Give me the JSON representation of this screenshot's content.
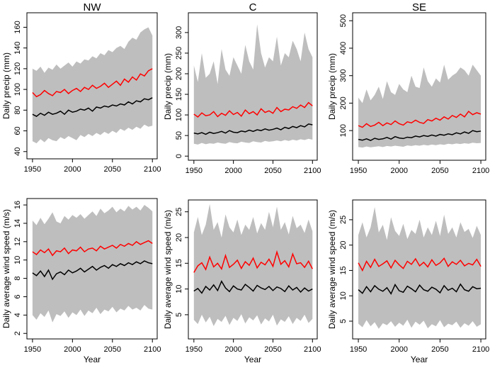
{
  "chart_data": [
    {
      "type": "line",
      "title": "NW",
      "y_label": "Daily precip (mm)",
      "x": [
        1950,
        1955,
        1960,
        1965,
        1970,
        1975,
        1980,
        1985,
        1990,
        1995,
        2000,
        2005,
        2010,
        2015,
        2020,
        2025,
        2030,
        2035,
        2040,
        2045,
        2050,
        2055,
        2060,
        2065,
        2070,
        2075,
        2080,
        2085,
        2090,
        2095,
        2100
      ],
      "xlim": [
        1943,
        2106
      ],
      "xticks": [
        1950,
        2000,
        2050,
        2100
      ],
      "ylim": [
        33,
        174
      ],
      "yticks": [
        40,
        60,
        80,
        100,
        120,
        140,
        160
      ],
      "band": {
        "color": "#bebebe",
        "lower": [
          50,
          48,
          52,
          49,
          53,
          51,
          50,
          54,
          52,
          55,
          53,
          51,
          56,
          54,
          57,
          55,
          58,
          56,
          59,
          57,
          60,
          58,
          62,
          60,
          63,
          61,
          64,
          62,
          66,
          64,
          65
        ],
        "upper": [
          120,
          118,
          122,
          116,
          121,
          119,
          124,
          120,
          123,
          126,
          122,
          127,
          125,
          129,
          128,
          132,
          130,
          135,
          133,
          138,
          136,
          140,
          142,
          139,
          146,
          150,
          148,
          155,
          158,
          160,
          152
        ]
      },
      "series": [
        {
          "color": "#ff0000",
          "values": [
            97,
            93,
            95,
            99,
            96,
            94,
            98,
            97,
            100,
            96,
            99,
            101,
            98,
            102,
            100,
            104,
            101,
            103,
            106,
            102,
            105,
            108,
            104,
            110,
            107,
            112,
            109,
            115,
            113,
            118,
            120
          ]
        },
        {
          "color": "#000000",
          "values": [
            76,
            74,
            77,
            75,
            78,
            76,
            77,
            79,
            76,
            80,
            78,
            79,
            81,
            80,
            82,
            79,
            83,
            82,
            84,
            83,
            85,
            84,
            86,
            85,
            88,
            86,
            89,
            88,
            91,
            90,
            92
          ]
        }
      ]
    },
    {
      "type": "line",
      "title": "C",
      "y_label": "Daily precip (mm)",
      "x": [
        1950,
        1955,
        1960,
        1965,
        1970,
        1975,
        1980,
        1985,
        1990,
        1995,
        2000,
        2005,
        2010,
        2015,
        2020,
        2025,
        2030,
        2035,
        2040,
        2045,
        2050,
        2055,
        2060,
        2065,
        2070,
        2075,
        2080,
        2085,
        2090,
        2095,
        2100
      ],
      "xlim": [
        1943,
        2106
      ],
      "xticks": [
        1950,
        2000,
        2050,
        2100
      ],
      "ylim": [
        -10,
        348
      ],
      "yticks": [
        0,
        50,
        100,
        150,
        200,
        250,
        300
      ],
      "band": {
        "color": "#bebebe",
        "lower": [
          30,
          28,
          32,
          29,
          31,
          30,
          33,
          31,
          30,
          34,
          32,
          31,
          35,
          33,
          32,
          36,
          34,
          33,
          37,
          35,
          36,
          38,
          36,
          39,
          37,
          40,
          38,
          41,
          39,
          42,
          40
        ],
        "upper": [
          220,
          180,
          250,
          190,
          200,
          230,
          175,
          260,
          210,
          195,
          240,
          220,
          200,
          270,
          230,
          210,
          320,
          250,
          215,
          240,
          230,
          290,
          220,
          250,
          240,
          280,
          260,
          230,
          300,
          260,
          240
        ]
      },
      "series": [
        {
          "color": "#ff0000",
          "values": [
            102,
            95,
            105,
            98,
            100,
            108,
            96,
            104,
            99,
            110,
            101,
            106,
            97,
            112,
            103,
            108,
            100,
            115,
            106,
            110,
            104,
            118,
            108,
            114,
            112,
            120,
            116,
            124,
            118,
            130,
            122
          ]
        },
        {
          "color": "#000000",
          "values": [
            56,
            54,
            57,
            53,
            58,
            55,
            57,
            60,
            56,
            62,
            58,
            57,
            61,
            59,
            63,
            60,
            64,
            62,
            66,
            63,
            65,
            68,
            64,
            70,
            67,
            72,
            69,
            74,
            71,
            78,
            76
          ]
        }
      ]
    },
    {
      "type": "line",
      "title": "SE",
      "y_label": "Daily precip (mm)",
      "x": [
        1950,
        1955,
        1960,
        1965,
        1970,
        1975,
        1980,
        1985,
        1990,
        1995,
        2000,
        2005,
        2010,
        2015,
        2020,
        2025,
        2030,
        2035,
        2040,
        2045,
        2050,
        2055,
        2060,
        2065,
        2070,
        2075,
        2080,
        2085,
        2090,
        2095,
        2100
      ],
      "xlim": [
        1943,
        2106
      ],
      "xticks": [
        1950,
        2000,
        2050,
        2100
      ],
      "ylim": [
        -8,
        529
      ],
      "yticks": [
        100,
        200,
        300,
        400,
        500
      ],
      "band": {
        "color": "#bebebe",
        "lower": [
          40,
          38,
          42,
          39,
          41,
          43,
          40,
          44,
          42,
          45,
          43,
          41,
          46,
          44,
          47,
          45,
          48,
          46,
          49,
          47,
          50,
          48,
          52,
          50,
          53,
          51,
          54,
          52,
          56,
          54,
          55
        ],
        "upper": [
          220,
          200,
          250,
          210,
          230,
          260,
          215,
          280,
          240,
          230,
          270,
          250,
          240,
          300,
          260,
          255,
          330,
          280,
          260,
          290,
          275,
          340,
          285,
          300,
          310,
          330,
          320,
          300,
          340,
          320,
          300
        ]
      },
      "series": [
        {
          "color": "#ff0000",
          "values": [
            118,
            112,
            125,
            115,
            120,
            130,
            118,
            128,
            122,
            135,
            125,
            120,
            132,
            128,
            138,
            130,
            126,
            140,
            135,
            145,
            138,
            150,
            142,
            155,
            148,
            160,
            150,
            170,
            158,
            165,
            160
          ]
        },
        {
          "color": "#000000",
          "values": [
            68,
            65,
            70,
            64,
            72,
            68,
            70,
            75,
            69,
            78,
            73,
            71,
            76,
            74,
            80,
            77,
            82,
            79,
            84,
            80,
            86,
            83,
            88,
            85,
            92,
            88,
            95,
            90,
            100,
            96,
            98
          ]
        }
      ]
    },
    {
      "type": "line",
      "y_label": "Daily average wind speed (m/s)",
      "x_label": "Year",
      "x": [
        1950,
        1955,
        1960,
        1965,
        1970,
        1975,
        1980,
        1985,
        1990,
        1995,
        2000,
        2005,
        2010,
        2015,
        2020,
        2025,
        2030,
        2035,
        2040,
        2045,
        2050,
        2055,
        2060,
        2065,
        2070,
        2075,
        2080,
        2085,
        2090,
        2095,
        2100
      ],
      "xlim": [
        1943,
        2106
      ],
      "xticks": [
        1950,
        2000,
        2050,
        2100
      ],
      "ylim": [
        1.4,
        16.7
      ],
      "yticks": [
        2,
        4,
        6,
        8,
        10,
        12,
        14,
        16
      ],
      "band": {
        "color": "#bebebe",
        "lower": [
          4.0,
          3.5,
          4.2,
          3.8,
          4.5,
          3.2,
          4.1,
          3.9,
          4.4,
          3.7,
          4.3,
          4.0,
          4.6,
          3.9,
          4.5,
          4.2,
          4.8,
          4.1,
          4.6,
          4.4,
          4.9,
          4.3,
          4.7,
          4.5,
          5.0,
          4.6,
          4.8,
          4.5,
          5.1,
          4.7,
          4.6
        ],
        "upper": [
          14.3,
          13.8,
          14.6,
          13.9,
          14.5,
          15.2,
          14.2,
          14.0,
          14.8,
          14.4,
          14.9,
          14.6,
          15.0,
          14.5,
          14.9,
          15.3,
          14.8,
          15.6,
          15.1,
          15.4,
          15.8,
          15.2,
          15.6,
          15.3,
          15.9,
          15.5,
          15.8,
          15.4,
          16.0,
          15.7,
          15.3
        ]
      },
      "series": [
        {
          "color": "#ff0000",
          "values": [
            10.9,
            10.6,
            11.1,
            10.8,
            11.2,
            10.5,
            11.0,
            10.9,
            11.3,
            10.7,
            11.1,
            11.0,
            11.4,
            10.9,
            11.2,
            11.3,
            11.0,
            11.5,
            11.2,
            11.4,
            11.6,
            11.3,
            11.7,
            11.5,
            11.8,
            11.6,
            12.0,
            11.7,
            11.9,
            12.1,
            11.8
          ]
        },
        {
          "color": "#000000",
          "values": [
            8.6,
            8.3,
            8.8,
            8.2,
            8.9,
            7.9,
            8.5,
            8.7,
            8.4,
            8.9,
            8.6,
            8.8,
            9.1,
            8.7,
            9.0,
            9.3,
            8.9,
            9.2,
            9.4,
            9.1,
            9.5,
            9.3,
            9.6,
            9.4,
            9.7,
            9.5,
            9.8,
            9.6,
            9.9,
            9.7,
            9.6
          ]
        }
      ]
    },
    {
      "type": "line",
      "y_label": "Daily average wind speed (m/s)",
      "x_label": "Year",
      "x": [
        1950,
        1955,
        1960,
        1965,
        1970,
        1975,
        1980,
        1985,
        1990,
        1995,
        2000,
        2005,
        2010,
        2015,
        2020,
        2025,
        2030,
        2035,
        2040,
        2045,
        2050,
        2055,
        2060,
        2065,
        2070,
        2075,
        2080,
        2085,
        2090,
        2095,
        2100
      ],
      "xlim": [
        1943,
        2106
      ],
      "xticks": [
        1950,
        2000,
        2050,
        2100
      ],
      "ylim": [
        0.3,
        27.3
      ],
      "yticks": [
        5,
        10,
        15,
        20,
        25
      ],
      "band": {
        "color": "#bebebe",
        "lower": [
          4.0,
          3.2,
          5.0,
          3.5,
          4.6,
          2.8,
          4.2,
          3.6,
          4.8,
          3.0,
          4.4,
          3.8,
          5.1,
          3.3,
          4.5,
          3.9,
          4.9,
          3.1,
          4.3,
          3.7,
          5.0,
          2.9,
          4.1,
          3.6,
          4.7,
          3.2,
          4.4,
          3.8,
          5.0,
          3.4,
          4.2
        ],
        "upper": [
          21.0,
          24.0,
          20.5,
          22.5,
          26.5,
          21.5,
          23.0,
          20.0,
          24.5,
          22.0,
          21.0,
          23.5,
          20.5,
          22.5,
          21.5,
          24.0,
          20.8,
          22.8,
          21.5,
          25.0,
          22.0,
          26.0,
          21.5,
          23.0,
          20.6,
          24.2,
          21.8,
          22.5,
          20.9,
          23.5,
          21.2
        ]
      },
      "series": [
        {
          "color": "#ff0000",
          "values": [
            13.2,
            14.5,
            15.1,
            13.8,
            16.2,
            14.3,
            15.0,
            13.9,
            16.5,
            14.2,
            14.8,
            15.6,
            14.0,
            15.3,
            14.6,
            16.0,
            14.1,
            15.2,
            14.7,
            15.8,
            14.4,
            17.2,
            14.8,
            15.5,
            14.3,
            16.8,
            14.9,
            15.1,
            14.2,
            15.4,
            13.9
          ]
        },
        {
          "color": "#000000",
          "values": [
            9.6,
            10.1,
            9.2,
            10.5,
            9.8,
            10.8,
            9.7,
            11.5,
            10.2,
            9.5,
            10.6,
            10.0,
            9.8,
            10.9,
            10.3,
            9.6,
            10.7,
            10.2,
            9.9,
            10.5,
            9.7,
            10.4,
            10.1,
            9.5,
            10.6,
            9.8,
            10.3,
            9.4,
            10.2,
            9.6,
            10.0
          ]
        }
      ]
    },
    {
      "type": "line",
      "y_label": "Daily average wind speed (m/s)",
      "x_label": "Year",
      "x": [
        1950,
        1955,
        1960,
        1965,
        1970,
        1975,
        1980,
        1985,
        1990,
        1995,
        2000,
        2005,
        2010,
        2015,
        2020,
        2025,
        2030,
        2035,
        2040,
        2045,
        2050,
        2055,
        2060,
        2065,
        2070,
        2075,
        2080,
        2085,
        2090,
        2095,
        2100
      ],
      "xlim": [
        1943,
        2106
      ],
      "xticks": [
        1950,
        2000,
        2050,
        2100
      ],
      "ylim": [
        1.5,
        28.9
      ],
      "yticks": [
        5,
        10,
        15,
        20,
        25
      ],
      "band": {
        "color": "#bebebe",
        "lower": [
          4.5,
          3.8,
          5.2,
          4.0,
          4.8,
          3.5,
          4.6,
          4.2,
          5.0,
          3.9,
          4.7,
          4.1,
          5.3,
          3.7,
          4.9,
          4.3,
          5.1,
          3.6,
          4.4,
          4.0,
          5.2,
          3.8,
          4.5,
          4.2,
          4.9,
          3.7,
          4.6,
          4.1,
          5.0,
          3.9,
          4.4
        ],
        "upper": [
          22.0,
          24.5,
          21.5,
          23.5,
          27.5,
          22.5,
          24.0,
          21.0,
          25.5,
          22.8,
          21.8,
          24.2,
          21.2,
          23.0,
          22.2,
          25.0,
          21.5,
          23.5,
          22.0,
          24.8,
          21.8,
          26.0,
          22.2,
          23.5,
          21.5,
          24.5,
          22.6,
          23.2,
          21.4,
          23.8,
          22.0
        ]
      },
      "series": [
        {
          "color": "#ff0000",
          "values": [
            16.5,
            15.0,
            16.8,
            15.6,
            17.2,
            15.8,
            16.3,
            16.9,
            15.5,
            17.0,
            16.1,
            15.4,
            16.8,
            16.2,
            17.3,
            15.9,
            16.6,
            15.7,
            17.1,
            16.0,
            16.5,
            17.4,
            15.8,
            16.7,
            16.2,
            17.0,
            15.9,
            16.4,
            16.1,
            17.2,
            15.8
          ]
        },
        {
          "color": "#000000",
          "values": [
            11.2,
            10.5,
            11.8,
            10.8,
            12.0,
            11.3,
            10.9,
            11.6,
            10.4,
            12.2,
            11.0,
            10.7,
            11.9,
            11.4,
            10.8,
            12.1,
            11.2,
            10.9,
            11.7,
            11.3,
            10.6,
            12.0,
            11.1,
            11.5,
            10.8,
            12.3,
            11.2,
            10.9,
            11.8,
            11.4,
            11.5
          ]
        }
      ]
    }
  ]
}
